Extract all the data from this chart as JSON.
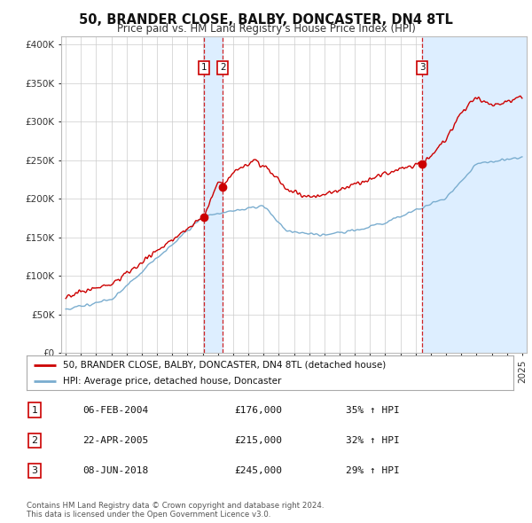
{
  "title": "50, BRANDER CLOSE, BALBY, DONCASTER, DN4 8TL",
  "subtitle": "Price paid vs. HM Land Registry's House Price Index (HPI)",
  "legend_line1": "50, BRANDER CLOSE, BALBY, DONCASTER, DN4 8TL (detached house)",
  "legend_line2": "HPI: Average price, detached house, Doncaster",
  "transactions": [
    {
      "num": 1,
      "date": "06-FEB-2004",
      "price": "£176,000",
      "hpi": "35% ↑ HPI",
      "year": 2004.1
    },
    {
      "num": 2,
      "date": "22-APR-2005",
      "price": "£215,000",
      "hpi": "32% ↑ HPI",
      "year": 2005.32
    },
    {
      "num": 3,
      "date": "08-JUN-2018",
      "price": "£245,000",
      "hpi": "29% ↑ HPI",
      "year": 2018.44
    }
  ],
  "transaction_prices": [
    176000,
    215000,
    245000
  ],
  "footer": "Contains HM Land Registry data © Crown copyright and database right 2024.\nThis data is licensed under the Open Government Licence v3.0.",
  "red_color": "#cc0000",
  "blue_color": "#7aadcf",
  "shade_color": "#ddeeff",
  "background_color": "#ffffff",
  "grid_color": "#cccccc",
  "ylim": [
    0,
    400000
  ],
  "xlim": [
    1994.7,
    2025.3
  ]
}
